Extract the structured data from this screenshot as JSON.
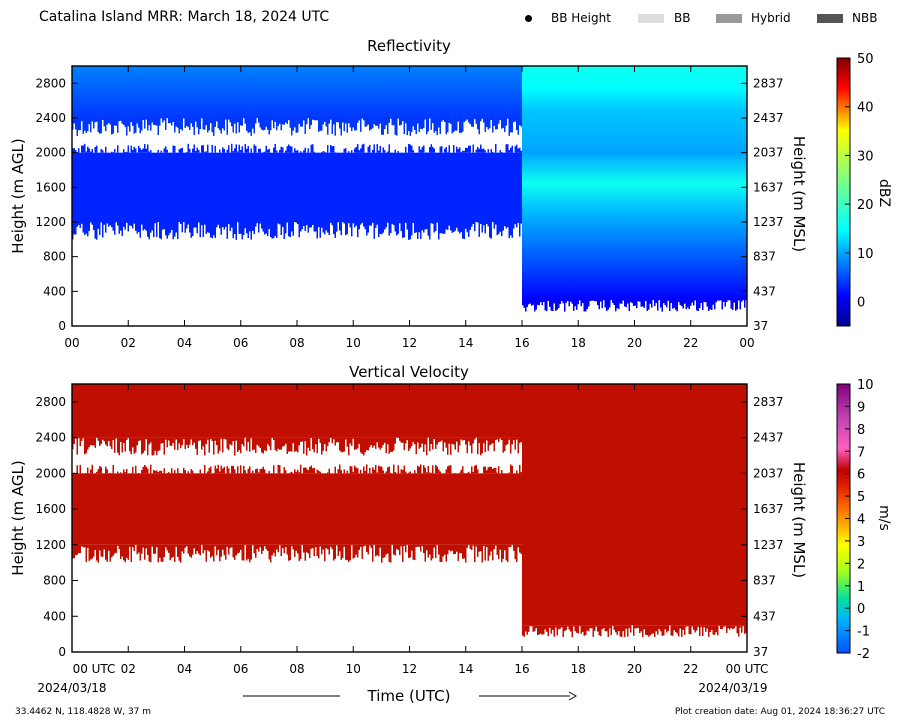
{
  "header": {
    "title": "Catalina Island MRR:  March 18, 2024 UTC",
    "legend": [
      {
        "label": "BB Height",
        "swatch": "dot",
        "color": "#000000"
      },
      {
        "label": "BB",
        "swatch": "rect",
        "color": "#dddddd"
      },
      {
        "label": "Hybrid",
        "swatch": "rect",
        "color": "#999999"
      },
      {
        "label": "NBB",
        "swatch": "rect",
        "color": "#555555"
      }
    ]
  },
  "footer": {
    "x_axis_label": "Time (UTC)",
    "start_date": "2024/03/18",
    "end_date": "2024/03/19",
    "location": "33.4462 N, 118.4828 W, 37 m",
    "creation_date": "Plot creation date: Aug 01, 2024 18:36:27 UTC"
  },
  "chart_data": [
    {
      "type": "heatmap",
      "title": "Reflectivity",
      "ylabel": "Height (m AGL)",
      "ylabel_right": "Height (m MSL)",
      "colorbar_label": "dBZ",
      "xlim": [
        0,
        24
      ],
      "ylim": [
        0,
        3000
      ],
      "x_ticks": [
        "00",
        "02",
        "04",
        "06",
        "08",
        "10",
        "12",
        "14",
        "16",
        "18",
        "20",
        "22",
        "00"
      ],
      "y_ticks": [
        0,
        400,
        800,
        1200,
        1600,
        2000,
        2400,
        2800
      ],
      "y_ticks_right": [
        37,
        437,
        837,
        1237,
        1637,
        2037,
        2437,
        2837
      ],
      "colorbar_range": [
        -5,
        50
      ],
      "colorbar_ticks": [
        0,
        10,
        20,
        30,
        40,
        50
      ],
      "segments": [
        {
          "x": [
            0,
            16
          ],
          "layers": [
            {
              "y": [
                2400,
                3000
              ],
              "dbz_top": 8,
              "dbz_bottom": 4
            },
            {
              "y": [
                1200,
                2000
              ],
              "dbz_top": 3,
              "dbz_bottom": 3
            }
          ]
        },
        {
          "x": [
            16,
            24
          ],
          "layers": [
            {
              "y": [
                300,
                3000
              ],
              "dbz_profile": [
                {
                  "h": 3000,
                  "dbz": 16
                },
                {
                  "h": 2750,
                  "dbz": 15
                },
                {
                  "h": 2500,
                  "dbz": 12
                },
                {
                  "h": 2000,
                  "dbz": 10
                },
                {
                  "h": 1650,
                  "dbz": 16
                },
                {
                  "h": 1300,
                  "dbz": 11
                },
                {
                  "h": 900,
                  "dbz": 7
                },
                {
                  "h": 500,
                  "dbz": 3
                },
                {
                  "h": 300,
                  "dbz": 1
                }
              ]
            }
          ]
        }
      ],
      "grid": false,
      "grid_note": "",
      "legend": "none"
    },
    {
      "type": "heatmap",
      "title": "Vertical Velocity",
      "xlabel": "Time (UTC)",
      "ylabel": "Height (m AGL)",
      "ylabel_right": "Height (m MSL)",
      "colorbar_label": "m/s",
      "xlim": [
        0,
        24
      ],
      "ylim": [
        0,
        3000
      ],
      "x_ticks": [
        "00 UTC",
        "02",
        "04",
        "06",
        "08",
        "10",
        "12",
        "14",
        "16",
        "18",
        "20",
        "22",
        "00 UTC"
      ],
      "y_ticks": [
        0,
        400,
        800,
        1200,
        1600,
        2000,
        2400,
        2800
      ],
      "y_ticks_right": [
        37,
        437,
        837,
        1237,
        1637,
        2037,
        2437,
        2837
      ],
      "colorbar_range": [
        -2,
        10
      ],
      "colorbar_ticks": [
        -2,
        -1,
        0,
        1,
        2,
        3,
        4,
        5,
        6,
        7,
        8,
        9,
        10
      ],
      "segments": [
        {
          "x": [
            0,
            16
          ],
          "layers": [
            {
              "y": [
                2400,
                3000
              ],
              "velocity": 6
            },
            {
              "y": [
                1200,
                2000
              ],
              "velocity": 6
            }
          ]
        },
        {
          "x": [
            16,
            24
          ],
          "layers": [
            {
              "y": [
                300,
                3000
              ],
              "velocity": 6
            }
          ]
        }
      ],
      "colors": {
        "fill": "#c00f00"
      }
    }
  ]
}
